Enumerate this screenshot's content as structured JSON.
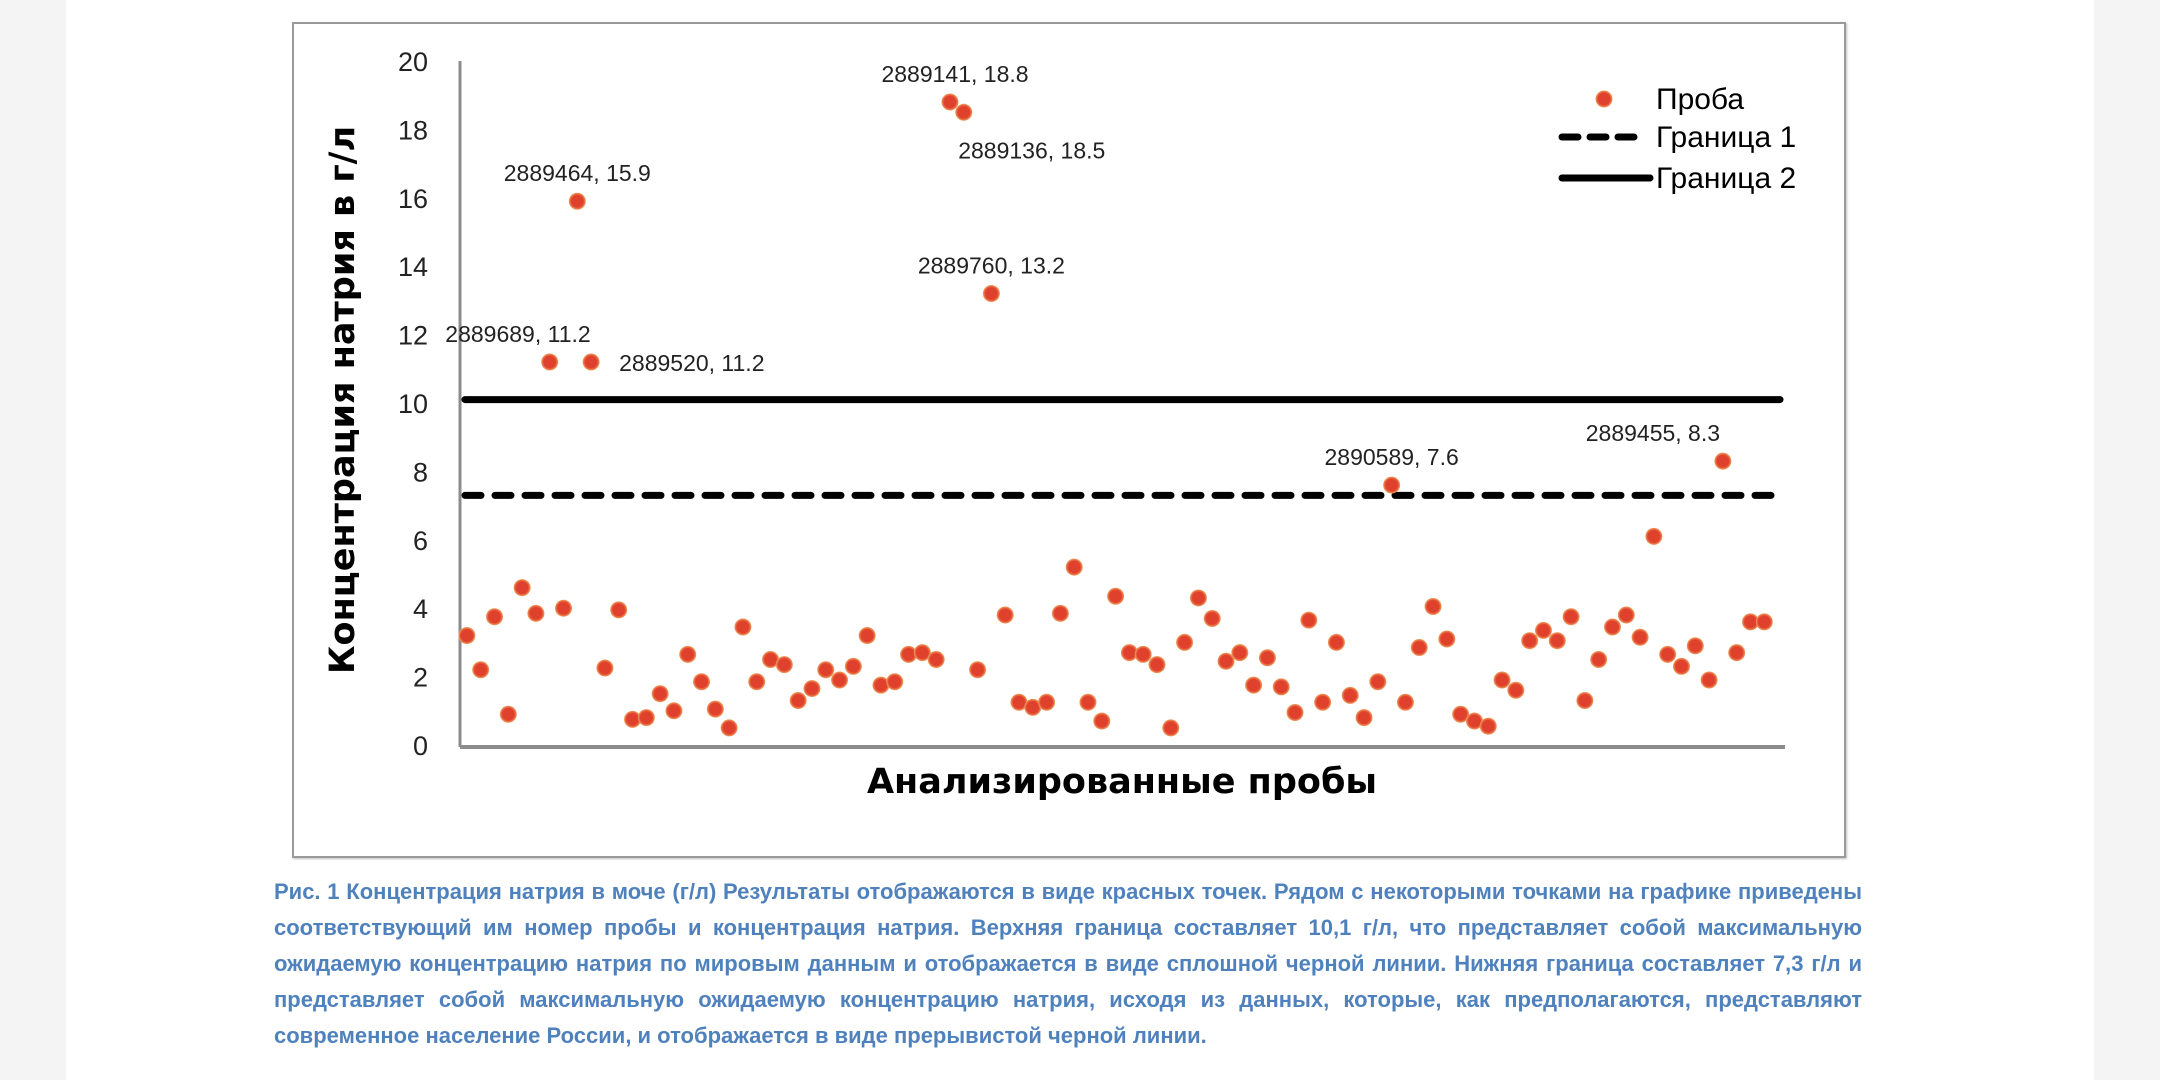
{
  "colors": {
    "point": "#e0412c",
    "point_halo": "#f0a060",
    "line": "#000000",
    "axis": "#8c8c8c",
    "caption": "#4f81bd",
    "frame": "#9a9a9a",
    "background": "#f4f4f4"
  },
  "chart_data": {
    "type": "scatter",
    "title": "",
    "xlabel": "Анализированные пробы",
    "ylabel": "Концентрация натрия в г/л",
    "xlim": [
      -0.5,
      95.5
    ],
    "ylim": [
      0,
      20
    ],
    "yticks": [
      0,
      2,
      4,
      6,
      8,
      10,
      12,
      14,
      16,
      18,
      20
    ],
    "ytick_labels": [
      "0",
      "2",
      "4",
      "6",
      "8",
      "10",
      "12",
      "14",
      "16",
      "18",
      "20"
    ],
    "grid": false,
    "legend_position": "top-right",
    "legend": [
      {
        "label": "Проба",
        "kind": "marker"
      },
      {
        "label": "Граница 1",
        "kind": "dashed-line"
      },
      {
        "label": "Граница 2",
        "kind": "solid-line"
      }
    ],
    "series": [
      {
        "name": "Проба",
        "type": "scatter",
        "x": [
          0,
          1,
          2,
          3,
          4,
          5,
          6,
          7,
          8,
          9,
          10,
          11,
          12,
          13,
          14,
          15,
          16,
          17,
          18,
          19,
          20,
          21,
          22,
          23,
          24,
          25,
          26,
          27,
          28,
          29,
          30,
          31,
          32,
          33,
          34,
          35,
          36,
          37,
          38,
          39,
          40,
          41,
          42,
          43,
          44,
          45,
          46,
          47,
          48,
          49,
          50,
          51,
          52,
          53,
          54,
          55,
          56,
          57,
          58,
          59,
          60,
          61,
          62,
          63,
          64,
          65,
          66,
          67,
          68,
          69,
          70,
          71,
          72,
          73,
          74,
          75,
          76,
          77,
          78,
          79,
          80,
          81,
          82,
          83,
          84,
          85,
          86,
          87,
          88,
          89,
          90,
          91,
          92,
          93,
          94
        ],
        "y": [
          3.2,
          2.2,
          3.75,
          0.9,
          4.6,
          3.85,
          11.2,
          4.0,
          15.9,
          11.2,
          2.25,
          3.95,
          0.75,
          0.8,
          1.5,
          1.0,
          2.65,
          1.85,
          1.05,
          0.5,
          3.45,
          1.85,
          2.5,
          2.35,
          1.3,
          1.65,
          2.2,
          1.9,
          2.3,
          3.2,
          1.75,
          1.85,
          2.65,
          2.7,
          2.5,
          18.8,
          18.5,
          2.2,
          13.2,
          3.8,
          1.25,
          1.1,
          1.25,
          3.85,
          5.2,
          1.25,
          0.7,
          4.35,
          2.7,
          2.65,
          2.35,
          0.5,
          3.0,
          4.3,
          3.7,
          2.45,
          2.7,
          1.75,
          2.55,
          1.7,
          0.95,
          3.65,
          1.25,
          3.0,
          1.45,
          0.8,
          1.85,
          7.6,
          1.25,
          2.85,
          4.05,
          3.1,
          0.9,
          0.7,
          0.55,
          1.9,
          1.6,
          3.05,
          3.35,
          3.05,
          3.75,
          1.3,
          2.5,
          3.45,
          3.8,
          3.15,
          6.1,
          2.65,
          2.3,
          2.9,
          1.9,
          8.3,
          2.7,
          3.6,
          3.6
        ]
      },
      {
        "name": "Граница 1",
        "type": "hline",
        "y": 7.3,
        "style": "dashed"
      },
      {
        "name": "Граница 2",
        "type": "hline",
        "y": 10.1,
        "style": "solid"
      }
    ],
    "annotations": [
      {
        "text": "2889689, 11.2",
        "x": 6,
        "y": 11.2,
        "anchor": "above"
      },
      {
        "text": "2889464, 15.9",
        "x": 8,
        "y": 15.9,
        "anchor": "above"
      },
      {
        "text": "2889520, 11.2",
        "x": 9,
        "y": 11.2,
        "anchor": "right"
      },
      {
        "text": "2889141, 18.8",
        "x": 35,
        "y": 18.8,
        "anchor": "above"
      },
      {
        "text": "2889136, 18.5",
        "x": 36,
        "y": 18.5,
        "anchor": "below"
      },
      {
        "text": "2889760, 13.2",
        "x": 38,
        "y": 13.2,
        "anchor": "above"
      },
      {
        "text": "2890589, 7.6",
        "x": 67,
        "y": 7.6,
        "anchor": "above"
      },
      {
        "text": "2889455, 8.3",
        "x": 91,
        "y": 8.3,
        "anchor": "above-left"
      }
    ]
  },
  "caption": {
    "text": "Рис. 1 Концентрация натрия в моче (г/л) Результаты отображаются в виде красных точек. Рядом с некоторыми точками на графике приведены соответствующий им номер пробы и концентрация натрия. Верхняя граница составляет 10,1 г/л, что представляет собой максимальную ожидаемую концентрацию натрия по мировым данным и отображается в виде сплошной черной линии. Нижняя граница составляет 7,3 г/л и представляет собой максимальную ожидаемую концентрацию натрия, исходя из данных, которые, как предполагаются, представляют современное население России, и отображается в виде прерывистой черной линии."
  }
}
